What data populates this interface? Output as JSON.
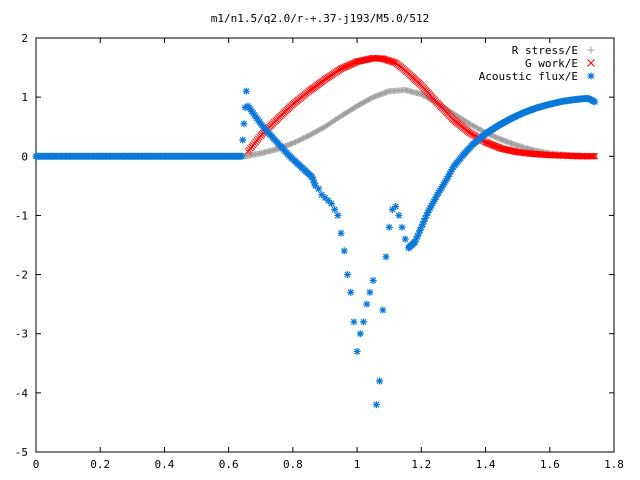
{
  "chart_data": {
    "type": "scatter",
    "title": "m1/n1.5/q2.0/r-+.37-j193/M5.0/512",
    "xlabel": "",
    "ylabel": "",
    "xlim": [
      0,
      1.8
    ],
    "ylim": [
      -5,
      2
    ],
    "x_ticks": [
      "0",
      "0.2",
      "0.4",
      "0.6",
      "0.8",
      "1",
      "1.2",
      "1.4",
      "1.6",
      "1.8"
    ],
    "y_ticks": [
      "-5",
      "-4",
      "-3",
      "-2",
      "-1",
      "0",
      "1",
      "2"
    ],
    "grid": false,
    "legend_position": "top-right",
    "series": [
      {
        "name": "R stress/E",
        "marker": "plus",
        "color": "#a0a0a0",
        "x": [
          0,
          0.65,
          0.66,
          0.7,
          0.75,
          0.8,
          0.85,
          0.9,
          0.95,
          1.0,
          1.05,
          1.1,
          1.15,
          1.2,
          1.25,
          1.3,
          1.35,
          1.4,
          1.45,
          1.5,
          1.55,
          1.6,
          1.65,
          1.7,
          1.74
        ],
        "y": [
          0,
          0,
          0.01,
          0.05,
          0.12,
          0.22,
          0.35,
          0.5,
          0.68,
          0.85,
          1.0,
          1.1,
          1.12,
          1.05,
          0.9,
          0.72,
          0.55,
          0.4,
          0.28,
          0.18,
          0.1,
          0.05,
          0.02,
          0.01,
          0.0
        ]
      },
      {
        "name": "G work/E",
        "marker": "cross",
        "color": "#ff0000",
        "x": [
          0.66,
          0.7,
          0.75,
          0.8,
          0.85,
          0.9,
          0.95,
          1.0,
          1.05,
          1.08,
          1.12,
          1.15,
          1.2,
          1.25,
          1.3,
          1.35,
          1.4,
          1.45,
          1.5,
          1.55,
          1.6,
          1.65,
          1.7,
          1.74
        ],
        "y": [
          0.08,
          0.35,
          0.62,
          0.88,
          1.1,
          1.3,
          1.48,
          1.6,
          1.66,
          1.65,
          1.58,
          1.45,
          1.2,
          0.9,
          0.62,
          0.4,
          0.24,
          0.13,
          0.07,
          0.04,
          0.02,
          0.01,
          0.0,
          0.0
        ]
      },
      {
        "name": "Acoustic flux/E",
        "marker": "star",
        "color": "#0a78d8",
        "x": [
          0,
          0.64,
          0.655,
          0.66,
          0.68,
          0.7,
          0.72,
          0.74,
          0.76,
          0.78,
          0.8,
          0.82,
          0.84,
          0.86,
          0.87,
          0.88,
          0.89,
          0.9,
          0.91,
          0.92,
          0.93,
          0.94,
          0.95,
          0.96,
          0.97,
          0.98,
          0.99,
          1.0,
          1.01,
          1.02,
          1.03,
          1.04,
          1.05,
          1.06,
          1.07,
          1.08,
          1.09,
          1.1,
          1.11,
          1.12,
          1.13,
          1.14,
          1.15,
          1.16,
          1.17,
          1.18,
          1.2,
          1.22,
          1.25,
          1.28,
          1.3,
          1.33,
          1.36,
          1.4,
          1.44,
          1.48,
          1.52,
          1.56,
          1.6,
          1.64,
          1.68,
          1.72,
          1.74
        ],
        "y": [
          0,
          0,
          1.1,
          0.85,
          0.7,
          0.55,
          0.42,
          0.3,
          0.18,
          0.06,
          -0.05,
          -0.15,
          -0.25,
          -0.35,
          -0.5,
          -0.55,
          -0.65,
          -0.7,
          -0.75,
          -0.8,
          -0.9,
          -1.0,
          -1.3,
          -1.6,
          -2.0,
          -2.3,
          -2.8,
          -3.3,
          -3.0,
          -2.8,
          -2.5,
          -2.3,
          -2.1,
          -4.2,
          -3.8,
          -2.6,
          -1.7,
          -1.2,
          -0.9,
          -0.85,
          -1.0,
          -1.2,
          -1.4,
          -1.55,
          -1.5,
          -1.45,
          -1.2,
          -0.95,
          -0.65,
          -0.38,
          -0.18,
          0.02,
          0.2,
          0.38,
          0.52,
          0.64,
          0.74,
          0.82,
          0.88,
          0.93,
          0.96,
          0.98,
          0.92
        ]
      }
    ]
  }
}
